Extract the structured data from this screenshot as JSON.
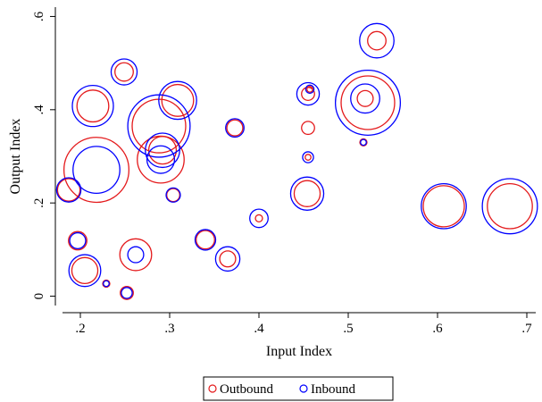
{
  "chart_data": {
    "type": "scatter",
    "subtype": "bubble",
    "title": "",
    "xlabel": "Input Index",
    "ylabel": "Output Index",
    "xlim": [
      0.18,
      0.71
    ],
    "ylim": [
      -0.02,
      0.62
    ],
    "xticks": [
      0.2,
      0.3,
      0.4,
      0.5,
      0.6,
      0.7
    ],
    "xtick_labels": [
      ".2",
      ".3",
      ".4",
      ".5",
      ".6",
      ".7"
    ],
    "yticks": [
      0,
      0.2,
      0.4,
      0.6
    ],
    "ytick_labels": [
      "0",
      ".2",
      ".4",
      ".6"
    ],
    "grid": false,
    "legend_position": "bottom-center",
    "series": [
      {
        "name": "Outbound",
        "color": "#e41a1c",
        "points": [
          {
            "x": 0.187,
            "y": 0.228,
            "size": 0.3
          },
          {
            "x": 0.197,
            "y": 0.119,
            "size": 0.2
          },
          {
            "x": 0.205,
            "y": 0.055,
            "size": 0.4
          },
          {
            "x": 0.214,
            "y": 0.408,
            "size": 0.6
          },
          {
            "x": 0.218,
            "y": 0.271,
            "size": 2.5
          },
          {
            "x": 0.229,
            "y": 0.027,
            "size": 0.03
          },
          {
            "x": 0.249,
            "y": 0.481,
            "size": 0.2
          },
          {
            "x": 0.252,
            "y": 0.007,
            "size": 0.1
          },
          {
            "x": 0.262,
            "y": 0.089,
            "size": 0.6
          },
          {
            "x": 0.288,
            "y": 0.365,
            "size": 1.7
          },
          {
            "x": 0.29,
            "y": 0.293,
            "size": 1.3
          },
          {
            "x": 0.292,
            "y": 0.313,
            "size": 0.45
          },
          {
            "x": 0.304,
            "y": 0.217,
            "size": 0.1
          },
          {
            "x": 0.309,
            "y": 0.42,
            "size": 0.6
          },
          {
            "x": 0.34,
            "y": 0.121,
            "size": 0.2
          },
          {
            "x": 0.365,
            "y": 0.08,
            "size": 0.15
          },
          {
            "x": 0.373,
            "y": 0.361,
            "size": 0.15
          },
          {
            "x": 0.4,
            "y": 0.167,
            "size": 0.03
          },
          {
            "x": 0.454,
            "y": 0.22,
            "size": 0.4
          },
          {
            "x": 0.455,
            "y": 0.361,
            "size": 0.1
          },
          {
            "x": 0.455,
            "y": 0.298,
            "size": 0.02
          },
          {
            "x": 0.455,
            "y": 0.434,
            "size": 0.1
          },
          {
            "x": 0.457,
            "y": 0.444,
            "size": 0.02
          },
          {
            "x": 0.517,
            "y": 0.33,
            "size": 0.03
          },
          {
            "x": 0.519,
            "y": 0.424,
            "size": 0.15
          },
          {
            "x": 0.522,
            "y": 0.415,
            "size": 1.7
          },
          {
            "x": 0.532,
            "y": 0.548,
            "size": 0.2
          },
          {
            "x": 0.607,
            "y": 0.193,
            "size": 1.0
          },
          {
            "x": 0.681,
            "y": 0.193,
            "size": 1.2
          }
        ]
      },
      {
        "name": "Inbound",
        "color": "#0000ff",
        "points": [
          {
            "x": 0.187,
            "y": 0.228,
            "size": 0.35
          },
          {
            "x": 0.197,
            "y": 0.119,
            "size": 0.15
          },
          {
            "x": 0.205,
            "y": 0.055,
            "size": 0.6
          },
          {
            "x": 0.214,
            "y": 0.408,
            "size": 1.0
          },
          {
            "x": 0.218,
            "y": 0.271,
            "size": 1.3
          },
          {
            "x": 0.229,
            "y": 0.027,
            "size": 0.02
          },
          {
            "x": 0.249,
            "y": 0.481,
            "size": 0.4
          },
          {
            "x": 0.252,
            "y": 0.007,
            "size": 0.07
          },
          {
            "x": 0.262,
            "y": 0.089,
            "size": 0.15
          },
          {
            "x": 0.288,
            "y": 0.365,
            "size": 2.3
          },
          {
            "x": 0.29,
            "y": 0.293,
            "size": 0.45
          },
          {
            "x": 0.292,
            "y": 0.313,
            "size": 0.7
          },
          {
            "x": 0.304,
            "y": 0.217,
            "size": 0.12
          },
          {
            "x": 0.309,
            "y": 0.42,
            "size": 0.85
          },
          {
            "x": 0.34,
            "y": 0.121,
            "size": 0.25
          },
          {
            "x": 0.365,
            "y": 0.08,
            "size": 0.35
          },
          {
            "x": 0.373,
            "y": 0.361,
            "size": 0.2
          },
          {
            "x": 0.4,
            "y": 0.167,
            "size": 0.2
          },
          {
            "x": 0.454,
            "y": 0.22,
            "size": 0.65
          },
          {
            "x": 0.455,
            "y": 0.298,
            "size": 0.07
          },
          {
            "x": 0.455,
            "y": 0.434,
            "size": 0.3
          },
          {
            "x": 0.457,
            "y": 0.444,
            "size": 0.04
          },
          {
            "x": 0.517,
            "y": 0.33,
            "size": 0.02
          },
          {
            "x": 0.519,
            "y": 0.424,
            "size": 0.5
          },
          {
            "x": 0.522,
            "y": 0.415,
            "size": 2.5
          },
          {
            "x": 0.532,
            "y": 0.548,
            "size": 0.7
          },
          {
            "x": 0.607,
            "y": 0.193,
            "size": 1.2
          },
          {
            "x": 0.681,
            "y": 0.193,
            "size": 1.8
          }
        ]
      }
    ]
  }
}
